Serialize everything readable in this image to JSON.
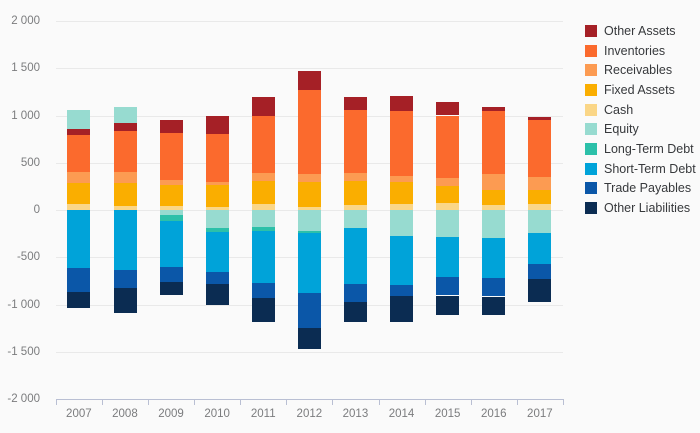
{
  "colors": {
    "background": "#fafafa",
    "gridline": "#e9e9e9",
    "axis_line": "#b9bfd3",
    "axis_label": "#7b7c7e",
    "legend_text": "#37393c"
  },
  "chart_data": {
    "type": "bar",
    "stacked": true,
    "title": "",
    "xlabel": "",
    "ylabel": "",
    "grid": true,
    "legend_position": "top-right",
    "categories": [
      "2007",
      "2008",
      "2009",
      "2010",
      "2011",
      "2012",
      "2013",
      "2014",
      "2015",
      "2016",
      "2017"
    ],
    "series": [
      {
        "name": "Other Assets",
        "color": "#a52026",
        "values": [
          65,
          80,
          135,
          195,
          200,
          200,
          140,
          160,
          140,
          45,
          35
        ]
      },
      {
        "name": "Inventories",
        "color": "#fb6a2d",
        "values": [
          390,
          440,
          495,
          510,
          600,
          890,
          665,
          685,
          665,
          665,
          605
        ]
      },
      {
        "name": "Receivables",
        "color": "#fc9b52",
        "values": [
          120,
          115,
          55,
          30,
          90,
          80,
          80,
          65,
          80,
          175,
          135
        ]
      },
      {
        "name": "Fixed Assets",
        "color": "#faae00",
        "values": [
          220,
          245,
          225,
          235,
          240,
          270,
          260,
          230,
          185,
          160,
          150
        ]
      },
      {
        "name": "Cash",
        "color": "#fad687",
        "values": [
          65,
          40,
          40,
          30,
          65,
          30,
          50,
          65,
          70,
          50,
          60
        ]
      },
      {
        "name": "Equity",
        "color": "#97dbd0",
        "values": [
          195,
          170,
          -55,
          -185,
          -180,
          -220,
          -190,
          -275,
          -290,
          -300,
          -240
        ]
      },
      {
        "name": "Long-Term Debt",
        "color": "#2cc0a9",
        "values": [
          0,
          0,
          -60,
          -50,
          -45,
          -20,
          0,
          0,
          0,
          0,
          0
        ]
      },
      {
        "name": "Short-Term Debt",
        "color": "#00a3d9",
        "values": [
          -615,
          -635,
          -485,
          -420,
          -550,
          -635,
          -590,
          -515,
          -420,
          -420,
          -330
        ]
      },
      {
        "name": "Trade Payables",
        "color": "#0b57a8",
        "values": [
          -255,
          -190,
          -165,
          -125,
          -160,
          -375,
          -190,
          -115,
          -195,
          -195,
          -160
        ]
      },
      {
        "name": "Other Liabilities",
        "color": "#0b2c52",
        "values": [
          -170,
          -265,
          -140,
          -225,
          -255,
          -220,
          -215,
          -280,
          -210,
          -190,
          -245
        ]
      }
    ],
    "stack_order_positive": [
      "Cash",
      "Fixed Assets",
      "Receivables",
      "Inventories",
      "Other Assets",
      "Equity"
    ],
    "stack_order_negative": [
      "Equity",
      "Long-Term Debt",
      "Short-Term Debt",
      "Trade Payables",
      "Other Liabilities"
    ],
    "y_axis": {
      "min": -2000,
      "max": 2000,
      "tick_interval": 500,
      "ticks": [
        {
          "value": 2000,
          "label": "2 000"
        },
        {
          "value": 1500,
          "label": "1 500"
        },
        {
          "value": 1000,
          "label": "1 000"
        },
        {
          "value": 500,
          "label": "500"
        },
        {
          "value": 0,
          "label": "0"
        },
        {
          "value": -500,
          "label": "-500"
        },
        {
          "value": -1000,
          "label": "-1 000"
        },
        {
          "value": -1500,
          "label": "-1 500"
        },
        {
          "value": -2000,
          "label": "-2 000"
        }
      ]
    }
  }
}
